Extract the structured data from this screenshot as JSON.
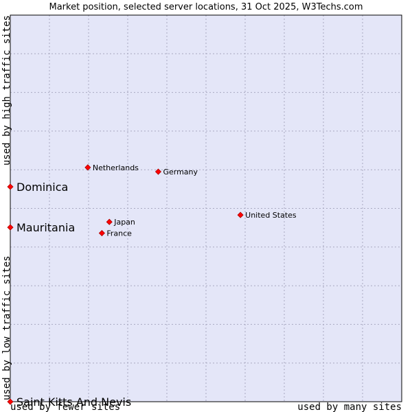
{
  "chart_data": {
    "type": "scatter",
    "title": "Market position, selected server locations, 31 Oct 2025, W3Techs.com",
    "xlabel_left": "used by fewer sites",
    "xlabel_right": "used by many sites",
    "ylabel_bottom": "used by low traffic sites",
    "ylabel_top": "used by high traffic sites",
    "xlim": [
      0,
      100
    ],
    "ylim": [
      0,
      100
    ],
    "grid": true,
    "colors": {
      "plot_background": "#e4e6f8",
      "grid": "#a8a8c0",
      "point": "#ff0000",
      "point_edge": "#aa0000"
    },
    "points": [
      {
        "name": "Netherlands",
        "x": 19.8,
        "y": 60.6,
        "size": "small"
      },
      {
        "name": "Germany",
        "x": 37.8,
        "y": 59.5,
        "size": "small"
      },
      {
        "name": "United States",
        "x": 58.8,
        "y": 48.3,
        "size": "small"
      },
      {
        "name": "Japan",
        "x": 25.3,
        "y": 46.5,
        "size": "small"
      },
      {
        "name": "France",
        "x": 23.4,
        "y": 43.6,
        "size": "small"
      },
      {
        "name": "Dominica",
        "x": 0,
        "y": 55.6,
        "size": "big"
      },
      {
        "name": "Mauritania",
        "x": 0,
        "y": 45.1,
        "size": "big"
      },
      {
        "name": "Saint Kitts And Nevis",
        "x": 0,
        "y": 0,
        "size": "big"
      }
    ]
  }
}
